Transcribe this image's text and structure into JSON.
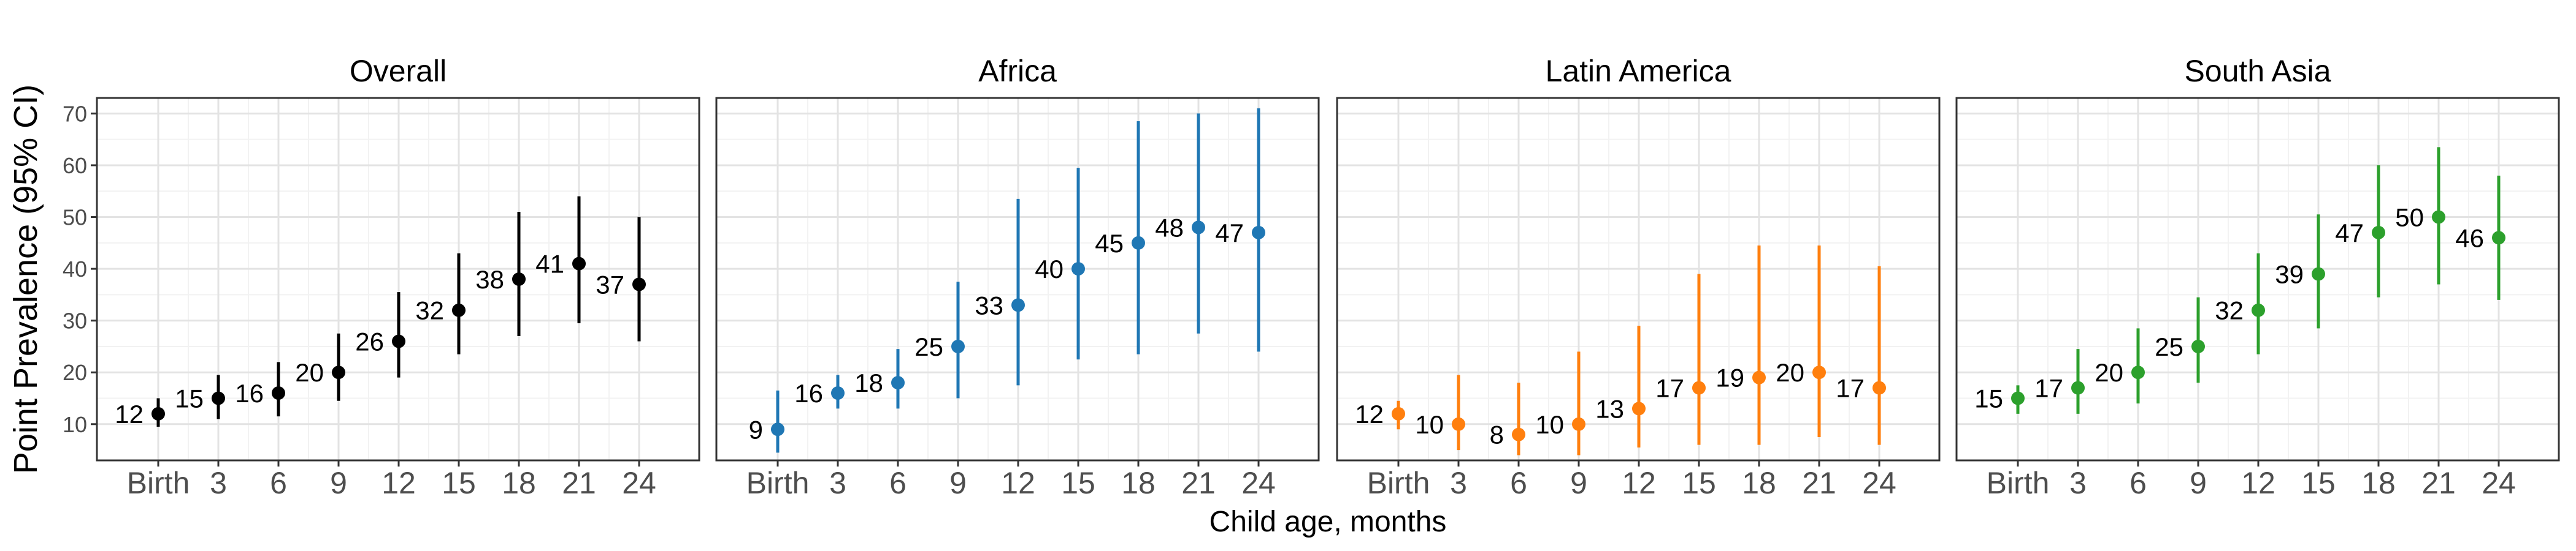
{
  "figure": {
    "ylabel": "Point Prevalence (95% CI)",
    "xlabel": "Child age, months"
  },
  "chart_data": [
    {
      "type": "scatter",
      "title": "Overall",
      "color": "#000000",
      "categories": [
        "Birth",
        "3",
        "6",
        "9",
        "12",
        "15",
        "18",
        "21",
        "24"
      ],
      "values": [
        12,
        15,
        16,
        20,
        26,
        32,
        38,
        41,
        37
      ],
      "ci_lower": [
        9.5,
        11,
        11.5,
        14.5,
        19,
        23.5,
        27,
        29.5,
        26
      ],
      "ci_upper": [
        15,
        19.5,
        22,
        27.5,
        35.5,
        43,
        51,
        54,
        50
      ],
      "yticks": [
        10,
        20,
        30,
        40,
        50,
        60,
        70
      ],
      "ylim": [
        3,
        73
      ],
      "grid": true
    },
    {
      "type": "scatter",
      "title": "Africa",
      "color": "#1f77b4",
      "categories": [
        "Birth",
        "3",
        "6",
        "9",
        "12",
        "15",
        "18",
        "21",
        "24"
      ],
      "values": [
        9,
        16,
        18,
        25,
        33,
        40,
        45,
        48,
        47
      ],
      "ci_lower": [
        4.5,
        13,
        13,
        15,
        17.5,
        22.5,
        23.5,
        27.5,
        24
      ],
      "ci_upper": [
        16.5,
        19.5,
        24.5,
        37.5,
        53.5,
        59.5,
        68.5,
        70,
        71
      ],
      "yticks": [
        10,
        20,
        30,
        40,
        50,
        60,
        70
      ],
      "ylim": [
        3,
        73
      ],
      "grid": true
    },
    {
      "type": "scatter",
      "title": "Latin America",
      "color": "#ff7f0e",
      "categories": [
        "Birth",
        "3",
        "6",
        "9",
        "12",
        "15",
        "18",
        "21",
        "24"
      ],
      "values": [
        12,
        10,
        8,
        10,
        13,
        17,
        19,
        20,
        17
      ],
      "ci_lower": [
        9,
        5,
        4,
        4,
        5.5,
        6,
        6,
        7.5,
        6
      ],
      "ci_upper": [
        14.5,
        19.5,
        18,
        24,
        29,
        39,
        44.5,
        44.5,
        40.5
      ],
      "yticks": [
        10,
        20,
        30,
        40,
        50,
        60,
        70
      ],
      "ylim": [
        3,
        73
      ],
      "grid": true
    },
    {
      "type": "scatter",
      "title": "South Asia",
      "color": "#2ca02c",
      "categories": [
        "Birth",
        "3",
        "6",
        "9",
        "12",
        "15",
        "18",
        "21",
        "24"
      ],
      "values": [
        15,
        17,
        20,
        25,
        32,
        39,
        47,
        50,
        46
      ],
      "ci_lower": [
        12,
        12,
        14,
        18,
        23.5,
        28.5,
        34.5,
        37,
        34
      ],
      "ci_upper": [
        17.5,
        24.5,
        28.5,
        34.5,
        43,
        50.5,
        60,
        63.5,
        58
      ],
      "yticks": [
        10,
        20,
        30,
        40,
        50,
        60,
        70
      ],
      "ylim": [
        3,
        73
      ],
      "grid": true
    }
  ]
}
